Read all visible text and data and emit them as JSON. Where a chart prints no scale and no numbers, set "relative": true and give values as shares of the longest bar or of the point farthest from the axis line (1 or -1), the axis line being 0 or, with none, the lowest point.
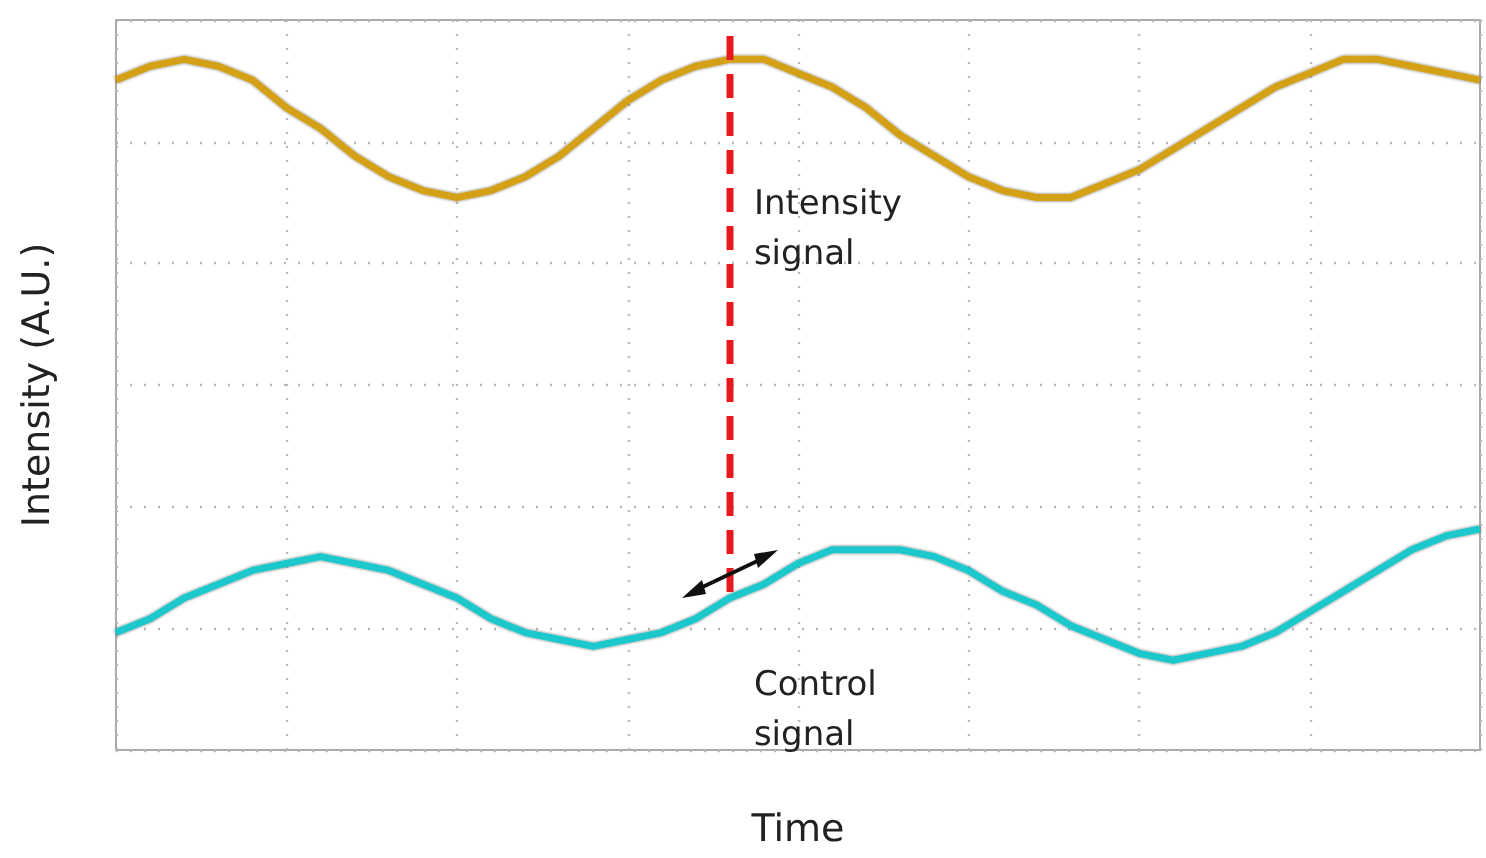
{
  "chart_data": {
    "type": "line",
    "relative": true,
    "xlabel": "Time",
    "ylabel": "Intensity (A.U.)",
    "categories": [
      null,
      null,
      null,
      null,
      null,
      null,
      null,
      null,
      null,
      null,
      null,
      null,
      null,
      null,
      null,
      null,
      null,
      null,
      null,
      null,
      null,
      null,
      null,
      null,
      null,
      null,
      null,
      null,
      null,
      null,
      null,
      null,
      null,
      null,
      null,
      null,
      null,
      null,
      null,
      null,
      null
    ],
    "series": [
      {
        "name": "Intensity signal",
        "color": "#d4a017",
        "values": [
          0.97,
          0.99,
          1.0,
          0.99,
          0.97,
          0.93,
          0.9,
          0.86,
          0.83,
          0.81,
          0.8,
          0.81,
          0.83,
          0.86,
          0.9,
          0.94,
          0.97,
          0.99,
          1.0,
          1.0,
          0.98,
          0.96,
          0.93,
          0.89,
          0.86,
          0.83,
          0.81,
          0.8,
          0.8,
          0.82,
          0.84,
          0.87,
          0.9,
          0.93,
          0.96,
          0.98,
          1.0,
          1.0,
          0.99,
          0.98,
          0.97
        ]
      },
      {
        "name": "Control signal",
        "color": "#1ec8cc",
        "values": [
          0.17,
          0.19,
          0.22,
          0.24,
          0.26,
          0.27,
          0.28,
          0.27,
          0.26,
          0.24,
          0.22,
          0.19,
          0.17,
          0.16,
          0.15,
          0.16,
          0.17,
          0.19,
          0.22,
          0.24,
          0.27,
          0.29,
          0.29,
          0.29,
          0.28,
          0.26,
          0.23,
          0.21,
          0.18,
          0.16,
          0.14,
          0.13,
          0.14,
          0.15,
          0.17,
          0.2,
          0.23,
          0.26,
          0.29,
          0.31,
          0.32
        ]
      }
    ],
    "grid": true,
    "line_style": "solid",
    "marker": "none",
    "legend": false
  }
}
